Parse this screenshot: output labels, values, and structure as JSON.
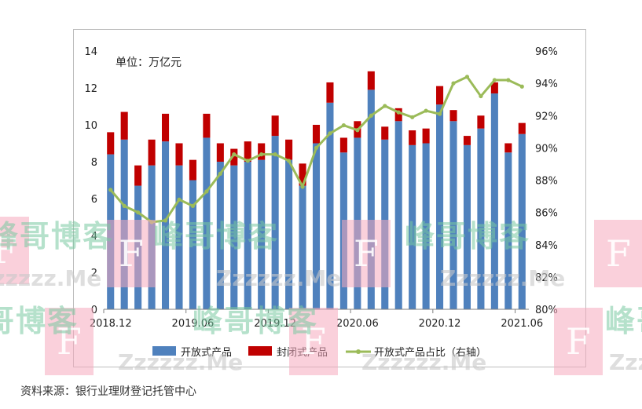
{
  "chart_data": {
    "type": "bar",
    "stacked": true,
    "x_tick_labels": [
      "2018.12",
      "2019.06",
      "2019.12",
      "2020.06",
      "2020.12",
      "2021.06"
    ],
    "series": [
      {
        "name": "开放式产品",
        "type": "bar",
        "color": "#4f81bd",
        "values": [
          8.4,
          9.2,
          6.7,
          7.8,
          9.1,
          7.8,
          7.0,
          9.3,
          8.0,
          7.8,
          8.0,
          8.1,
          9.4,
          8.1,
          6.7,
          9.0,
          11.2,
          8.5,
          9.3,
          11.9,
          9.2,
          10.2,
          8.9,
          9.0,
          11.1,
          10.2,
          8.9,
          9.8,
          11.7,
          8.5,
          9.5
        ]
      },
      {
        "name": "封闭式产品",
        "type": "bar",
        "color": "#c00000",
        "values": [
          1.2,
          1.5,
          1.1,
          1.4,
          1.5,
          1.2,
          1.1,
          1.3,
          1.0,
          0.9,
          1.1,
          0.9,
          1.1,
          1.1,
          1.2,
          1.0,
          1.1,
          0.8,
          0.9,
          1.0,
          0.7,
          0.7,
          0.8,
          0.8,
          1.0,
          0.6,
          0.5,
          0.7,
          0.6,
          0.5,
          0.6
        ]
      },
      {
        "name": "开放式产品占比（右轴）",
        "type": "line",
        "axis": "right",
        "color": "#9bbb59",
        "values": [
          87.4,
          86.4,
          86.0,
          85.4,
          85.5,
          86.8,
          86.4,
          87.3,
          88.4,
          89.6,
          89.2,
          89.6,
          89.6,
          89.2,
          87.6,
          90.0,
          90.9,
          91.4,
          91.1,
          92.0,
          92.6,
          92.2,
          91.9,
          92.3,
          92.1,
          94.0,
          94.4,
          93.2,
          94.2,
          94.2,
          93.8
        ]
      }
    ],
    "unit_label": "单位：万亿元",
    "y_left": {
      "min": 0,
      "max": 14,
      "step": 2,
      "tick_labels": [
        "0",
        "2",
        "4",
        "6",
        "8",
        "10",
        "12",
        "14"
      ]
    },
    "y_right": {
      "min": 80,
      "max": 96,
      "step": 2,
      "tick_labels": [
        "80%",
        "82%",
        "84%",
        "86%",
        "88%",
        "90%",
        "92%",
        "94%",
        "96%"
      ]
    },
    "legend": {
      "placement": "bottom"
    },
    "grid": false
  },
  "source_note": "资料来源：银行业理财登记托管中心",
  "watermark": {
    "box_text": "F",
    "brand_text": "峰哥博客",
    "url_text": "Zzzzzz.Me"
  }
}
